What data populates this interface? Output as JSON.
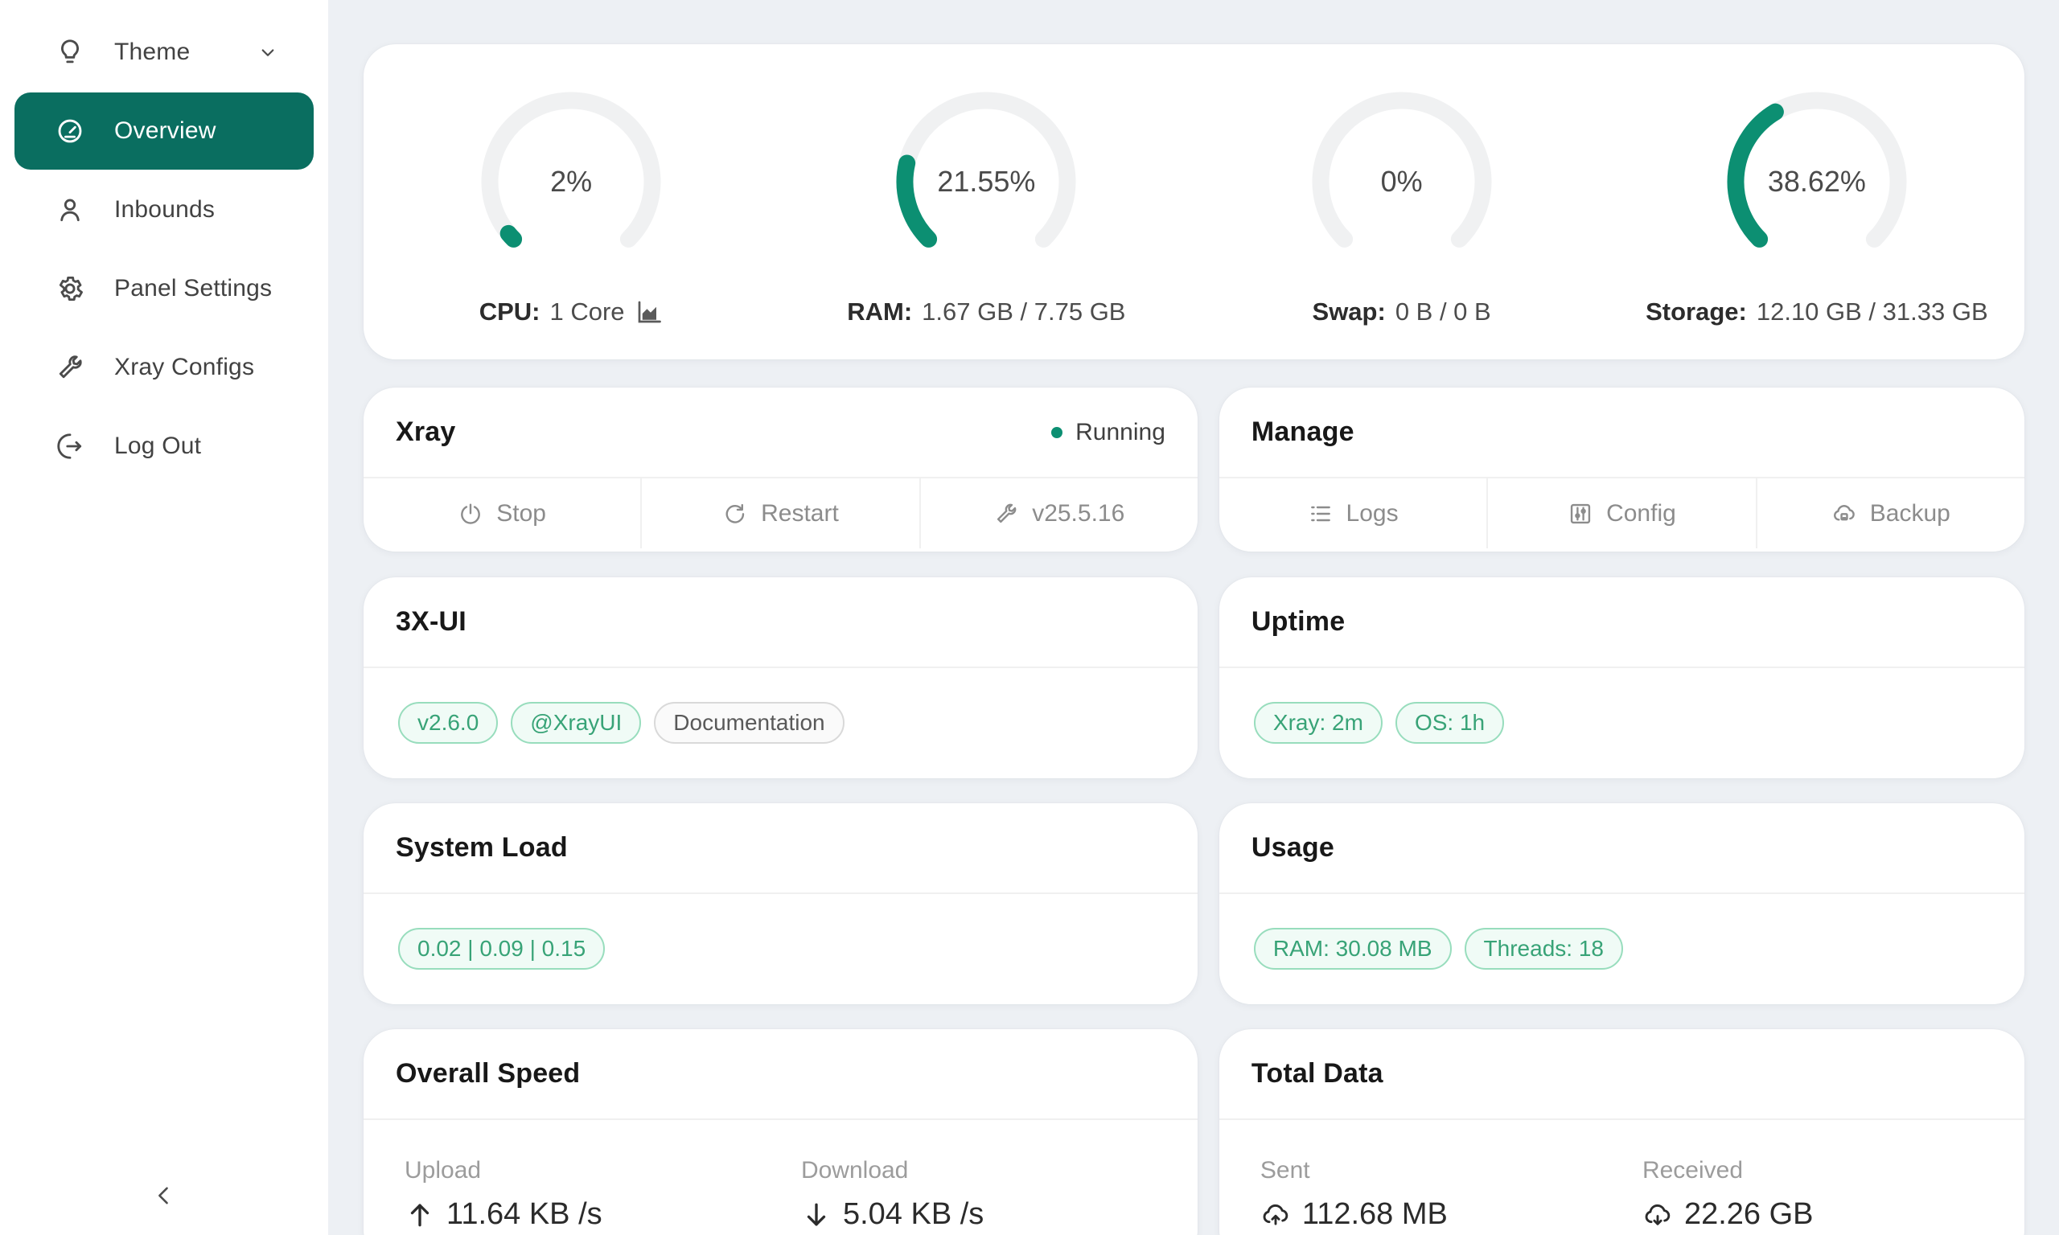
{
  "colors": {
    "primary": "#0a6e60",
    "arc": "#0c8f72",
    "page_bg": "#edf0f4",
    "tag_green_text": "#38a377",
    "status_running": "#0c8f72"
  },
  "sidebar": {
    "items": {
      "theme": {
        "label": "Theme"
      },
      "overview": {
        "label": "Overview"
      },
      "inbounds": {
        "label": "Inbounds"
      },
      "panel": {
        "label": "Panel Settings"
      },
      "configs": {
        "label": "Xray Configs"
      },
      "logout": {
        "label": "Log Out"
      }
    }
  },
  "gauges": [
    {
      "percent": 2,
      "percent_label": "2%",
      "label_bold": "CPU:",
      "label_value": "1 Core"
    },
    {
      "percent": 21.55,
      "percent_label": "21.55%",
      "label_bold": "RAM:",
      "label_value": "1.67 GB / 7.75 GB"
    },
    {
      "percent": 0,
      "percent_label": "0%",
      "label_bold": "Swap:",
      "label_value": "0 B / 0 B"
    },
    {
      "percent": 38.62,
      "percent_label": "38.62%",
      "label_bold": "Storage:",
      "label_value": "12.10 GB / 31.33 GB"
    }
  ],
  "xray_card": {
    "title": "Xray",
    "status": "Running",
    "actions": [
      {
        "label": "Stop"
      },
      {
        "label": "Restart"
      },
      {
        "label": "v25.5.16"
      }
    ]
  },
  "manage_card": {
    "title": "Manage",
    "actions": [
      {
        "label": "Logs"
      },
      {
        "label": "Config"
      },
      {
        "label": "Backup"
      }
    ]
  },
  "xui_card": {
    "title": "3X-UI",
    "tags": [
      {
        "label": "v2.6.0"
      },
      {
        "label": "@XrayUI"
      },
      {
        "label": "Documentation"
      }
    ]
  },
  "uptime_card": {
    "title": "Uptime",
    "tags": [
      {
        "label": "Xray: 2m"
      },
      {
        "label": "OS: 1h"
      }
    ]
  },
  "load_card": {
    "title": "System Load",
    "tags": [
      {
        "label": "0.02 | 0.09 | 0.15"
      }
    ]
  },
  "usage_card": {
    "title": "Usage",
    "tags": [
      {
        "label": "RAM: 30.08 MB"
      },
      {
        "label": "Threads: 18"
      }
    ]
  },
  "speed_card": {
    "title": "Overall Speed",
    "stats": [
      {
        "label": "Upload",
        "value": "11.64 KB /s"
      },
      {
        "label": "Download",
        "value": "5.04 KB /s"
      }
    ]
  },
  "data_card": {
    "title": "Total Data",
    "stats": [
      {
        "label": "Sent",
        "value": "112.68 MB"
      },
      {
        "label": "Received",
        "value": "22.26 GB"
      }
    ]
  }
}
